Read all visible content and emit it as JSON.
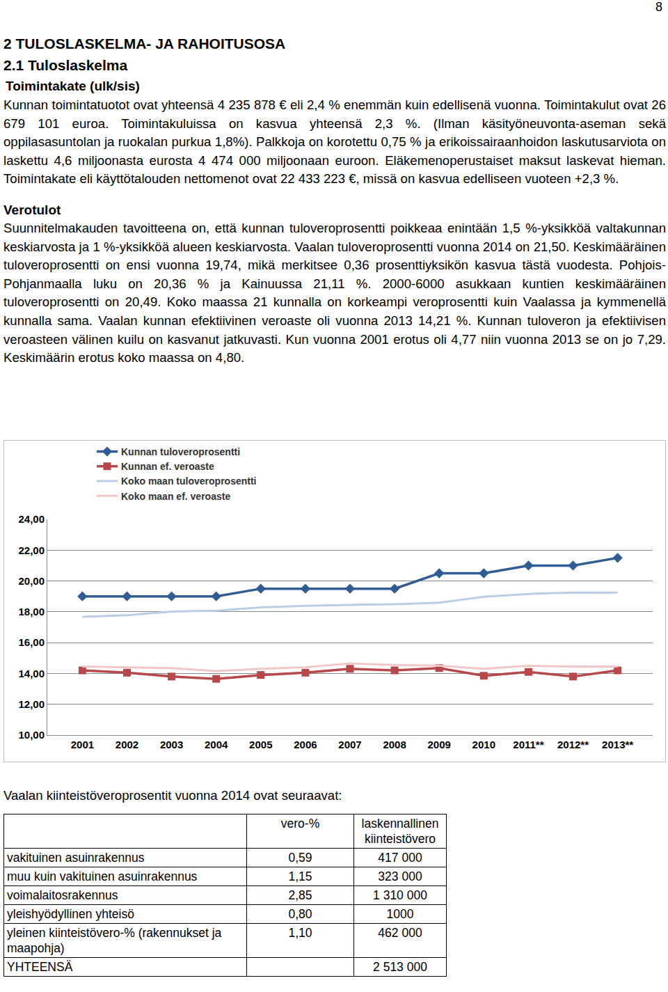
{
  "page_number": "8",
  "heading": "2 TULOSLASKELMA- JA RAHOITUSOSA",
  "subheading": "2.1 Tuloslaskelma",
  "sections": [
    {
      "title": "Toimintakate (ulk/sis)",
      "paragraphs": [
        "Kunnan toimintatuotot ovat yhteensä 4 235 878 € eli 2,4 % enemmän kuin edellisenä vuonna. Toimintakulut ovat 26 679 101 euroa. Toimintakuluissa on kasvua yhteensä 2,3 %. (Ilman käsityöneuvonta-aseman sekä oppilasasuntolan ja ruokalan purkua 1,8%). Palkkoja on korotettu 0,75 % ja erikoissairaanhoidon laskutusarviota on laskettu 4,6 miljoonasta eurosta 4 474 000 miljoonaan euroon. Eläkemenoperustaiset maksut laskevat hieman. Toimintakate eli käyttötalouden nettomenot ovat 22 433 223 €, missä on kasvua edelliseen vuoteen +2,3 %."
      ]
    },
    {
      "title": "Verotulot",
      "paragraphs": [
        "Suunnitelmakauden tavoitteena on, että kunnan tuloveroprosentti poikkeaa enintään 1,5 %-yksikköä valtakunnan keskiarvosta ja 1 %-yksikköä alueen keskiarvosta. Vaalan tuloveroprosentti vuonna 2014 on 21,50. Keskimääräinen tuloveroprosentti on ensi vuonna 19,74, mikä merkitsee 0,36 prosenttiyksikön kasvua tästä vuodesta. Pohjois-Pohjanmaalla luku on 20,36 % ja Kainuussa 21,11 %. 2000-6000 asukkaan kuntien keskimääräinen tuloveroprosentti on 20,49. Koko maassa 21 kunnalla on korkeampi veroprosentti kuin Vaalassa ja kymmenellä kunnalla sama. Vaalan kunnan efektiivinen veroaste oli vuonna 2013 14,21 %. Kunnan tuloveron ja efektiivisen veroasteen välinen kuilu on kasvanut jatkuvasti. Kun vuonna 2001 erotus oli 4,77 niin vuonna 2013 se on jo 7,29. Keskimäärin erotus koko maassa on 4,80."
      ]
    }
  ],
  "chart_data": {
    "type": "line",
    "categories": [
      "2001",
      "2002",
      "2003",
      "2004",
      "2005",
      "2006",
      "2007",
      "2008",
      "2009",
      "2010",
      "2011**",
      "2012**",
      "2013**"
    ],
    "series": [
      {
        "name": "Kunnan tuloveroprosentti",
        "color": "#2f5d93",
        "marker": "diamond",
        "line_style": "solid",
        "values": [
          19.0,
          19.0,
          19.0,
          19.0,
          19.5,
          19.5,
          19.5,
          19.5,
          20.5,
          20.5,
          21.0,
          21.0,
          21.5
        ]
      },
      {
        "name": "Kunnan ef. veroaste",
        "color": "#b8474a",
        "marker": "square",
        "line_style": "solid",
        "values": [
          14.2,
          14.05,
          13.8,
          13.65,
          13.9,
          14.05,
          14.3,
          14.2,
          14.35,
          13.85,
          14.1,
          13.8,
          14.2
        ]
      },
      {
        "name": "Koko maan tuloveroprosentti",
        "color": "#b9cde5",
        "marker": "none",
        "line_style": "solid",
        "values": [
          17.68,
          17.78,
          18.02,
          18.07,
          18.29,
          18.39,
          18.45,
          18.49,
          18.59,
          18.98,
          19.16,
          19.25,
          19.25
        ]
      },
      {
        "name": "Koko maan ef. veroaste",
        "color": "#f2c6c6",
        "marker": "none",
        "line_style": "solid",
        "values": [
          14.45,
          14.4,
          14.35,
          14.15,
          14.3,
          14.4,
          14.65,
          14.55,
          14.5,
          14.3,
          14.5,
          14.45,
          14.45
        ]
      }
    ],
    "ylim": [
      10,
      24
    ],
    "yticks": [
      {
        "value": 10,
        "label": "10,00"
      },
      {
        "value": 12,
        "label": "12,00"
      },
      {
        "value": 14,
        "label": "14,00"
      },
      {
        "value": 16,
        "label": "16,00"
      },
      {
        "value": 18,
        "label": "18,00"
      },
      {
        "value": 20,
        "label": "20,00"
      },
      {
        "value": 22,
        "label": "22,00"
      },
      {
        "value": 24,
        "label": "24,00"
      }
    ],
    "grid": true,
    "legend": "top"
  },
  "table_title": "Vaalan kiinteistöveroprosentit vuonna 2014 ovat seuraavat:",
  "table": {
    "header": [
      "",
      "vero-%",
      "laskennallinen kiinteistövero"
    ],
    "rows": [
      [
        "vakituinen asuinrakennus",
        "0,59",
        "417 000"
      ],
      [
        "muu kuin vakituinen asuinrakennus",
        "1,15",
        "323 000"
      ],
      [
        "voimalaitosrakennus",
        "2,85",
        "1 310 000"
      ],
      [
        "yleishyödyllinen yhteisö",
        "0,80",
        "1000"
      ],
      [
        "yleinen kiinteistövero-% (rakennukset ja maapohja)",
        "1,10",
        "462 000"
      ],
      [
        "YHTEENSÄ",
        "",
        "2 513 000"
      ]
    ]
  }
}
